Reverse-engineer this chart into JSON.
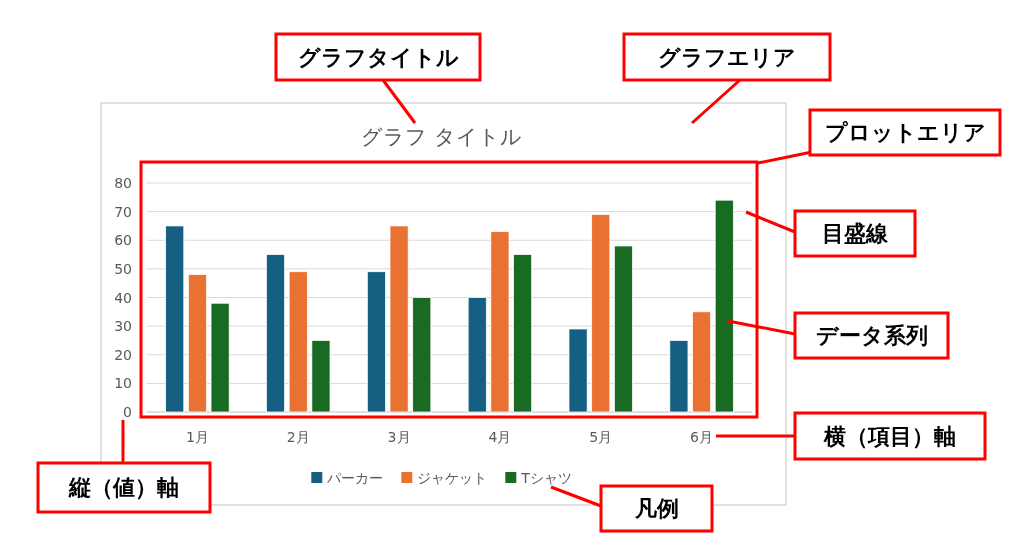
{
  "chart_data": {
    "type": "bar",
    "title": "グラフ タイトル",
    "categories": [
      "1月",
      "2月",
      "3月",
      "4月",
      "5月",
      "6月"
    ],
    "series": [
      {
        "name": "パーカー",
        "color": "#156082",
        "values": [
          65,
          55,
          49,
          40,
          29,
          25
        ]
      },
      {
        "name": "ジャケット",
        "color": "#e97132",
        "values": [
          48,
          49,
          65,
          63,
          69,
          35
        ]
      },
      {
        "name": "Tシャツ",
        "color": "#196b24",
        "values": [
          38,
          25,
          40,
          55,
          58,
          74
        ]
      }
    ],
    "ylim": [
      0,
      80
    ],
    "yticks": [
      0,
      10,
      20,
      30,
      40,
      50,
      60,
      70,
      80
    ],
    "grid": "y",
    "legend": "bottom",
    "annotations": [
      "グラフタイトル",
      "グラフエリア",
      "プロットエリア",
      "目盛線",
      "データ系列",
      "横（項目）軸",
      "縦（値）軸",
      "凡例"
    ]
  }
}
